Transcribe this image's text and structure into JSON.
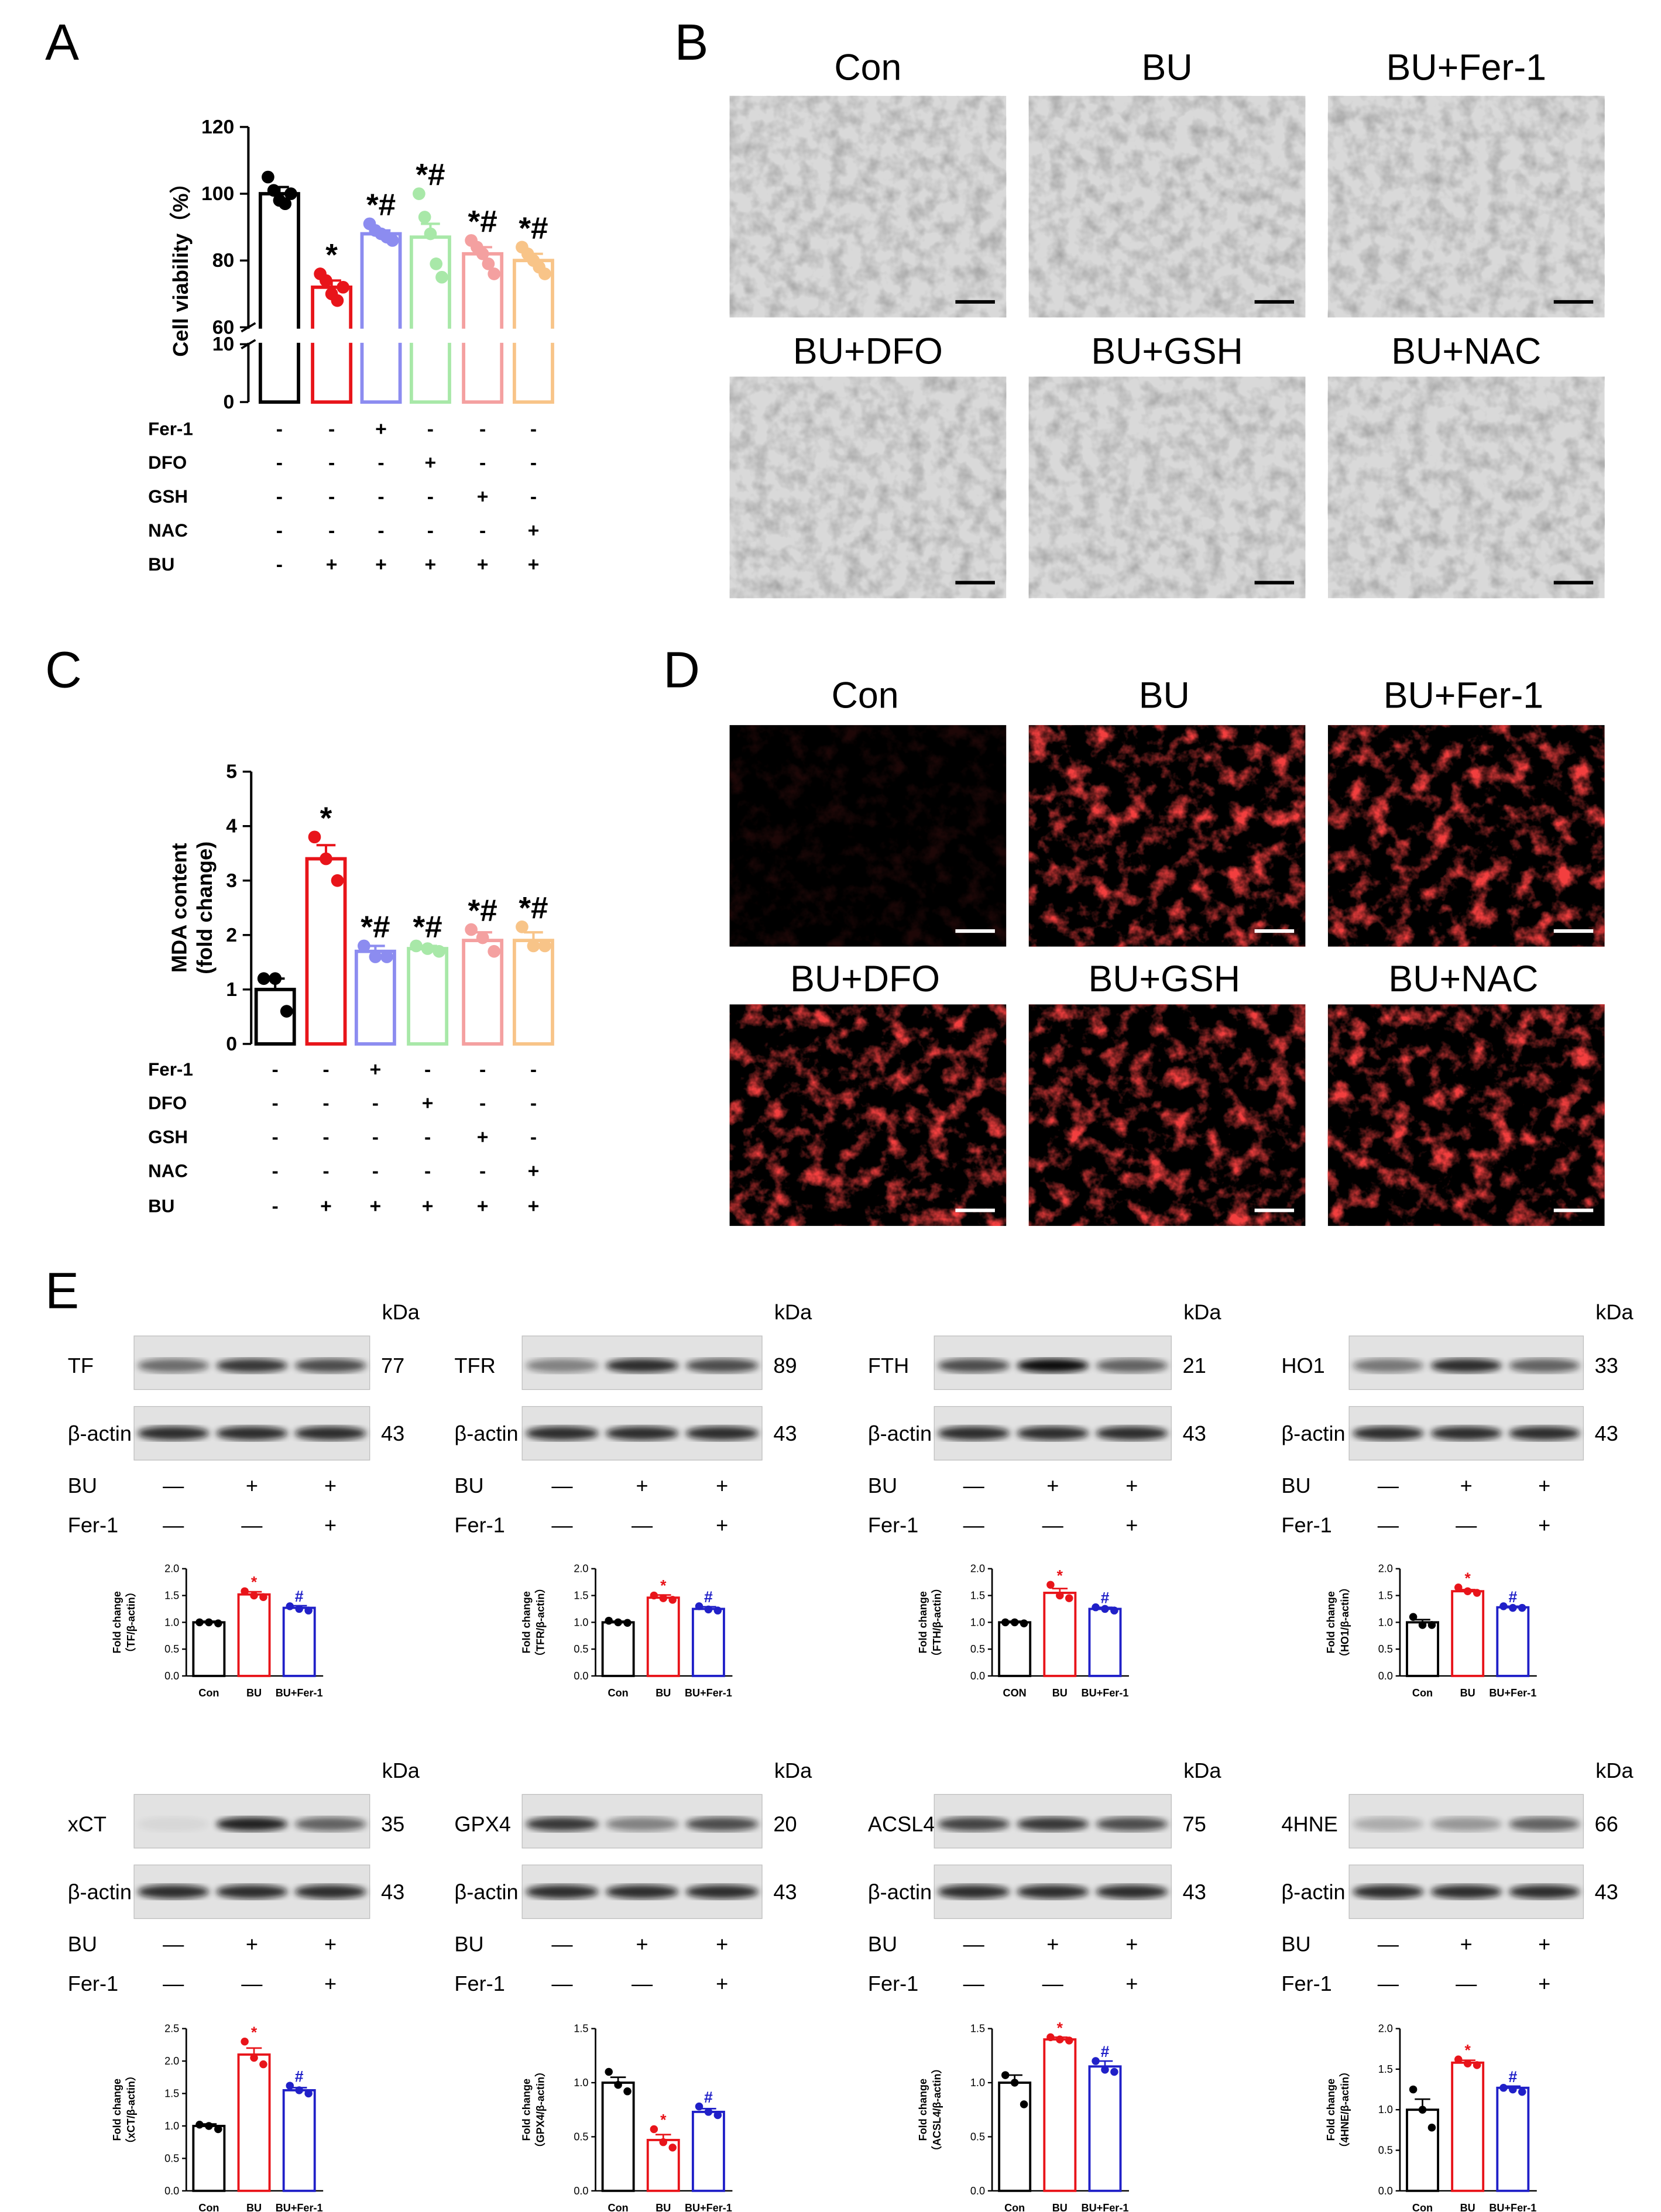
{
  "panel_labels": [
    "A",
    "B",
    "C",
    "D",
    "E"
  ],
  "image_titles": [
    "Con",
    "BU",
    "BU+Fer-1",
    "BU+DFO",
    "BU+GSH",
    "BU+NAC"
  ],
  "blots": {
    "kda_label": "kDa",
    "rows": [
      {
        "name": "BU",
        "signs": [
          "—",
          "+",
          "+"
        ]
      },
      {
        "name": "Fer-1",
        "signs": [
          "—",
          "—",
          "+"
        ]
      }
    ],
    "items": [
      {
        "protein": "TF",
        "kda": "77",
        "control": "β-actin",
        "control_kda": "43"
      },
      {
        "protein": "TFR",
        "kda": "89",
        "control": "β-actin",
        "control_kda": "43"
      },
      {
        "protein": "FTH",
        "kda": "21",
        "control": "β-actin",
        "control_kda": "43"
      },
      {
        "protein": "HO1",
        "kda": "33",
        "control": "β-actin",
        "control_kda": "43"
      },
      {
        "protein": "xCT",
        "kda": "35",
        "control": "β-actin",
        "control_kda": "43"
      },
      {
        "protein": "GPX4",
        "kda": "20",
        "control": "β-actin",
        "control_kda": "43"
      },
      {
        "protein": "ACSL4",
        "kda": "75",
        "control": "β-actin",
        "control_kda": "43"
      },
      {
        "protein": "4HNE",
        "kda": "66",
        "control": "β-actin",
        "control_kda": "43"
      }
    ]
  },
  "chart_data": [
    {
      "type": "bar",
      "ylabel": [
        "Cell viability（%）"
      ],
      "values": [
        100,
        72,
        88,
        87,
        82,
        80
      ],
      "errors": [
        2,
        2,
        1,
        4,
        2,
        2
      ],
      "points": [
        [
          105,
          101,
          98,
          97,
          100
        ],
        [
          76,
          74,
          70,
          68,
          72
        ],
        [
          91,
          89,
          88,
          87,
          86
        ],
        [
          100,
          93,
          88,
          79,
          75
        ],
        [
          86,
          84,
          82,
          79,
          76
        ],
        [
          84,
          82,
          80,
          78,
          76
        ]
      ],
      "annotations": [
        null,
        "*",
        "*#",
        "*#",
        "*#",
        "*#"
      ],
      "colors": [
        "#000000",
        "#e8141a",
        "#8c8cf0",
        "#a8e8a8",
        "#f4a0a0",
        "#f8c488"
      ],
      "ylim": [
        0,
        120
      ],
      "axis_break": [
        10,
        60
      ],
      "yticks": [
        0,
        10,
        60,
        80,
        100,
        120
      ],
      "treatments": [
        {
          "name": "Fer-1",
          "signs": [
            "-",
            "-",
            "+",
            "-",
            "-",
            "-"
          ]
        },
        {
          "name": "DFO",
          "signs": [
            "-",
            "-",
            "-",
            "+",
            "-",
            "-"
          ]
        },
        {
          "name": "GSH",
          "signs": [
            "-",
            "-",
            "-",
            "-",
            "+",
            "-"
          ]
        },
        {
          "name": "NAC",
          "signs": [
            "-",
            "-",
            "-",
            "-",
            "-",
            "+"
          ]
        },
        {
          "name": "BU",
          "signs": [
            "-",
            "+",
            "+",
            "+",
            "+",
            "+"
          ]
        }
      ]
    },
    {
      "type": "bar",
      "ylabel": [
        "MDA content",
        "(fold change)"
      ],
      "values": [
        1,
        3.4,
        1.7,
        1.75,
        1.9,
        1.9
      ],
      "errors": [
        0.2,
        0.25,
        0.1,
        0.05,
        0.15,
        0.15
      ],
      "points": [
        [
          1.2,
          1.2,
          0.6
        ],
        [
          3.8,
          3.4,
          3.0
        ],
        [
          1.8,
          1.6,
          1.6
        ],
        [
          1.8,
          1.75,
          1.7
        ],
        [
          2.1,
          1.95,
          1.7
        ],
        [
          2.15,
          1.8,
          1.8
        ]
      ],
      "annotations": [
        null,
        "*",
        "*#",
        "*#",
        "*#",
        "*#"
      ],
      "colors": [
        "#000000",
        "#e8141a",
        "#8c8cf0",
        "#a8e8a8",
        "#f4a0a0",
        "#f8c488"
      ],
      "ylim": [
        0,
        5
      ],
      "yticks": [
        0,
        1,
        2,
        3,
        4,
        5
      ],
      "treatments": [
        {
          "name": "Fer-1",
          "signs": [
            "-",
            "-",
            "+",
            "-",
            "-",
            "-"
          ]
        },
        {
          "name": "DFO",
          "signs": [
            "-",
            "-",
            "-",
            "+",
            "-",
            "-"
          ]
        },
        {
          "name": "GSH",
          "signs": [
            "-",
            "-",
            "-",
            "-",
            "+",
            "-"
          ]
        },
        {
          "name": "NAC",
          "signs": [
            "-",
            "-",
            "-",
            "-",
            "-",
            "+"
          ]
        },
        {
          "name": "BU",
          "signs": [
            "-",
            "+",
            "+",
            "+",
            "+",
            "+"
          ]
        }
      ]
    },
    {
      "type": "bar",
      "ylabel": [
        "Fold change",
        "（TF/β-actin）"
      ],
      "categories": [
        "Con",
        "BU",
        "BU+Fer-1"
      ],
      "values": [
        1.0,
        1.52,
        1.27
      ],
      "errors": [
        0.02,
        0.05,
        0.04
      ],
      "points": [
        [
          1.0,
          1.0,
          0.98
        ],
        [
          1.58,
          1.5,
          1.47
        ],
        [
          1.3,
          1.25,
          1.22
        ]
      ],
      "annotations": [
        null,
        "*",
        "#"
      ],
      "colors": [
        "#000000",
        "#e8141a",
        "#2020c8"
      ],
      "ylim": [
        0,
        2
      ],
      "yticks": [
        {
          "value": 0,
          "label": "0.0"
        },
        0.5,
        {
          "value": 1,
          "label": "1.0"
        },
        1.5,
        {
          "value": 2,
          "label": "2.0"
        }
      ]
    },
    {
      "type": "bar",
      "ylabel": [
        "Fold change",
        "（TFR/β-actin）"
      ],
      "categories": [
        "Con",
        "BU",
        "BU+Fer-1"
      ],
      "values": [
        1.0,
        1.46,
        1.25
      ],
      "errors": [
        0.02,
        0.05,
        0.04
      ],
      "points": [
        [
          1.03,
          1.0,
          0.99
        ],
        [
          1.5,
          1.45,
          1.42
        ],
        [
          1.3,
          1.24,
          1.22
        ]
      ],
      "annotations": [
        null,
        "*",
        "#"
      ],
      "colors": [
        "#000000",
        "#e8141a",
        "#2020c8"
      ],
      "ylim": [
        0,
        2
      ],
      "yticks": [
        {
          "value": 0,
          "label": "0.0"
        },
        0.5,
        {
          "value": 1,
          "label": "1.0"
        },
        1.5,
        {
          "value": 2,
          "label": "2.0"
        }
      ]
    },
    {
      "type": "bar",
      "ylabel": [
        "Fold change",
        "（FTH/β-actin）"
      ],
      "categories": [
        "CON",
        "BU",
        "BU+Fer-1"
      ],
      "values": [
        1.0,
        1.55,
        1.25
      ],
      "errors": [
        0.02,
        0.08,
        0.03
      ],
      "points": [
        [
          1.0,
          1.0,
          0.98
        ],
        [
          1.7,
          1.5,
          1.45
        ],
        [
          1.28,
          1.25,
          1.22
        ]
      ],
      "annotations": [
        null,
        "*",
        "#"
      ],
      "colors": [
        "#000000",
        "#e8141a",
        "#2020c8"
      ],
      "ylim": [
        0,
        2
      ],
      "yticks": [
        {
          "value": 0,
          "label": "0.0"
        },
        0.5,
        {
          "value": 1,
          "label": "1.0"
        },
        1.5,
        {
          "value": 2,
          "label": "2.0"
        }
      ]
    },
    {
      "type": "bar",
      "ylabel": [
        "Fold change",
        "（HO1/β-actin）"
      ],
      "categories": [
        "Con",
        "BU",
        "BU+Fer-1"
      ],
      "values": [
        1.0,
        1.58,
        1.28
      ],
      "errors": [
        0.05,
        0.03,
        0.02
      ],
      "points": [
        [
          1.1,
          0.95,
          0.95
        ],
        [
          1.65,
          1.58,
          1.55
        ],
        [
          1.3,
          1.27,
          1.27
        ]
      ],
      "annotations": [
        null,
        "*",
        "#"
      ],
      "colors": [
        "#000000",
        "#e8141a",
        "#2020c8"
      ],
      "ylim": [
        0,
        2
      ],
      "yticks": [
        {
          "value": 0,
          "label": "0.0"
        },
        0.5,
        {
          "value": 1,
          "label": "1.0"
        },
        1.5,
        {
          "value": 2,
          "label": "2.0"
        }
      ]
    },
    {
      "type": "bar",
      "ylabel": [
        "Fold change",
        "（xCT/β-actin）"
      ],
      "categories": [
        "Con",
        "BU",
        "BU+Fer-1"
      ],
      "values": [
        1.0,
        2.1,
        1.55
      ],
      "errors": [
        0.03,
        0.1,
        0.04
      ],
      "points": [
        [
          1.02,
          1.0,
          0.95
        ],
        [
          2.3,
          2.05,
          1.95
        ],
        [
          1.62,
          1.55,
          1.5
        ]
      ],
      "annotations": [
        null,
        "*",
        "#"
      ],
      "colors": [
        "#000000",
        "#e8141a",
        "#2020c8"
      ],
      "ylim": [
        0,
        2.5
      ],
      "yticks": [
        {
          "value": 0,
          "label": "0.0"
        },
        0.5,
        {
          "value": 1,
          "label": "1.0"
        },
        1.5,
        {
          "value": 2,
          "label": "2.0"
        },
        2.5
      ]
    },
    {
      "type": "bar",
      "ylabel": [
        "Fold change",
        "（GPX4/β-actin）"
      ],
      "categories": [
        "Con",
        "BU",
        "BU+Fer-1"
      ],
      "values": [
        1.0,
        0.47,
        0.73
      ],
      "errors": [
        0.05,
        0.05,
        0.03
      ],
      "points": [
        [
          1.1,
          0.98,
          0.92
        ],
        [
          0.57,
          0.45,
          0.4
        ],
        [
          0.78,
          0.73,
          0.7
        ]
      ],
      "annotations": [
        null,
        "*",
        "#"
      ],
      "colors": [
        "#000000",
        "#e8141a",
        "#2020c8"
      ],
      "ylim": [
        0,
        1.5
      ],
      "yticks": [
        {
          "value": 0,
          "label": "0.0"
        },
        0.5,
        {
          "value": 1,
          "label": "1.0"
        },
        1.5
      ]
    },
    {
      "type": "bar",
      "ylabel": [
        "Fold change",
        "（ACSL4/β-actin）"
      ],
      "categories": [
        "Con",
        "BU",
        "BU+Fer-1"
      ],
      "values": [
        1.0,
        1.4,
        1.15
      ],
      "errors": [
        0.07,
        0.02,
        0.05
      ],
      "points": [
        [
          1.07,
          1.0,
          0.8
        ],
        [
          1.42,
          1.4,
          1.39
        ],
        [
          1.2,
          1.12,
          1.1
        ]
      ],
      "annotations": [
        null,
        "*",
        "#"
      ],
      "colors": [
        "#000000",
        "#e8141a",
        "#2020c8"
      ],
      "ylim": [
        0,
        1.5
      ],
      "yticks": [
        {
          "value": 0,
          "label": "0.0"
        },
        0.5,
        {
          "value": 1,
          "label": "1.0"
        },
        1.5
      ]
    },
    {
      "type": "bar",
      "ylabel": [
        "Fold change",
        "（4HNE/β-actin）"
      ],
      "categories": [
        "Con",
        "BU",
        "BU+Fer-1"
      ],
      "values": [
        1.0,
        1.58,
        1.27
      ],
      "errors": [
        0.13,
        0.03,
        0.02
      ],
      "points": [
        [
          1.25,
          1.0,
          0.78
        ],
        [
          1.62,
          1.57,
          1.55
        ],
        [
          1.27,
          1.25,
          1.22
        ]
      ],
      "annotations": [
        null,
        "*",
        "#"
      ],
      "colors": [
        "#000000",
        "#e8141a",
        "#2020c8"
      ],
      "ylim": [
        0,
        2
      ],
      "yticks": [
        {
          "value": 0,
          "label": "0.0"
        },
        0.5,
        {
          "value": 1,
          "label": "1.0"
        },
        1.5,
        {
          "value": 2,
          "label": "2.0"
        }
      ]
    }
  ]
}
